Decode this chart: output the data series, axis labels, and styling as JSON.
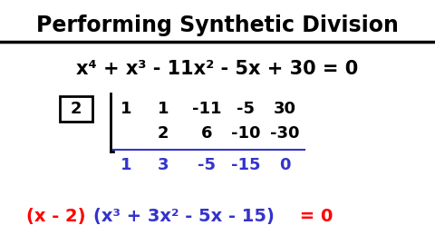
{
  "title": "Performing Synthetic Division",
  "title_color": "#000000",
  "title_fontsize": 17,
  "bg_color": "#ffffff",
  "equation": "x⁴ + x³ - 11x² - 5x + 30 = 0",
  "eq_color": "#000000",
  "eq_fontsize": 15,
  "divisor": "2",
  "row1": [
    "1",
    "1",
    "-11",
    "-5",
    "30"
  ],
  "row2": [
    "2",
    "6",
    "-10",
    "-30"
  ],
  "row3": [
    "1",
    "3",
    "-5",
    "-15",
    "0"
  ],
  "row1_color": "#000000",
  "row2_color": "#000000",
  "row3_color": "#3333cc",
  "sd_fontsize": 13,
  "result_red": "(x - 2)",
  "result_blue": "(x³ + 3x² - 5x - 15)",
  "result_end": " = 0",
  "result_red_color": "#ff0000",
  "result_blue_color": "#3333cc",
  "result_fontsize": 14,
  "line_color": "#000000",
  "hline_color": "#3333cc"
}
